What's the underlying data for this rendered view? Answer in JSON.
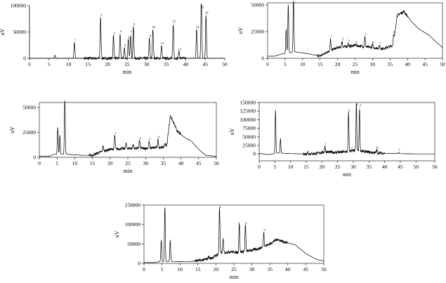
{
  "chart_data": [
    {
      "type": "line",
      "xlabel": "min",
      "ylabel": "uV",
      "xlim": [
        0,
        50
      ],
      "ylim": [
        0,
        100000
      ],
      "xticks": [
        "0",
        "5",
        "10",
        "15",
        "20",
        "25",
        "30",
        "35",
        "40",
        "45",
        "50"
      ],
      "yticks": [
        "0",
        "50000",
        "100000"
      ],
      "frame": false,
      "peaks": [
        {
          "x": 6.5,
          "y": 6000,
          "label": ""
        },
        {
          "x": 11.5,
          "y": 30000,
          "label": "1"
        },
        {
          "x": 18.2,
          "y": 78000,
          "label": "2"
        },
        {
          "x": 21.5,
          "y": 43000,
          "label": "3"
        },
        {
          "x": 23.2,
          "y": 47000,
          "label": "4"
        },
        {
          "x": 24.3,
          "y": 20000,
          "label": "5"
        },
        {
          "x": 25.3,
          "y": 35000,
          "label": "6"
        },
        {
          "x": 25.9,
          "y": 45000,
          "label": "7"
        },
        {
          "x": 26.6,
          "y": 60000,
          "label": "8"
        },
        {
          "x": 30.7,
          "y": 38000,
          "label": "9"
        },
        {
          "x": 31.6,
          "y": 55000,
          "label": "10"
        },
        {
          "x": 33.8,
          "y": 24000,
          "label": "11"
        },
        {
          "x": 36.8,
          "y": 66000,
          "label": "12"
        },
        {
          "x": 38.3,
          "y": 13000,
          "label": "13"
        },
        {
          "x": 42.8,
          "y": 55000,
          "label": "14"
        },
        {
          "x": 44.0,
          "y": 115000,
          "label": "15"
        },
        {
          "x": 45.2,
          "y": 82000,
          "label": "16"
        }
      ]
    },
    {
      "type": "line",
      "xlabel": "min",
      "ylabel": "uV",
      "xlim": [
        0,
        50
      ],
      "ylim": [
        0,
        52000
      ],
      "xticks": [
        "0",
        "5",
        "10",
        "15",
        "20",
        "25",
        "30",
        "35",
        "40",
        "45",
        "50"
      ],
      "yticks": [
        "0",
        "25000",
        "50000"
      ],
      "frame": true,
      "baseline": [
        [
          0,
          2000
        ],
        [
          2,
          2000
        ],
        [
          4,
          4000
        ],
        [
          8,
          6000
        ],
        [
          12,
          4000
        ],
        [
          15,
          2000
        ],
        [
          17,
          6000
        ],
        [
          20,
          10000
        ],
        [
          25,
          12000
        ],
        [
          30,
          10000
        ],
        [
          33,
          9000
        ],
        [
          36,
          12000
        ],
        [
          37,
          40000
        ],
        [
          39,
          44000
        ],
        [
          41,
          35000
        ],
        [
          43,
          28000
        ],
        [
          46,
          22000
        ],
        [
          48,
          16000
        ],
        [
          50,
          10000
        ]
      ],
      "peaks": [
        {
          "x": 5.3,
          "y": 27000,
          "label": ""
        },
        {
          "x": 5.9,
          "y": 50000,
          "label": ""
        },
        {
          "x": 7.4,
          "y": 58000,
          "label": ""
        },
        {
          "x": 18.0,
          "y": 18000,
          "label": "1"
        },
        {
          "x": 21.3,
          "y": 16000,
          "label": "2"
        },
        {
          "x": 23.0,
          "y": 14000,
          "label": "3"
        },
        {
          "x": 25.2,
          "y": 13000,
          "label": "4"
        },
        {
          "x": 27.8,
          "y": 20000,
          "label": "5"
        },
        {
          "x": 30.0,
          "y": 13000,
          "label": "6"
        },
        {
          "x": 32.0,
          "y": 12000,
          "label": "7"
        },
        {
          "x": 36.0,
          "y": 22000,
          "label": "8"
        }
      ]
    },
    {
      "type": "line",
      "xlabel": "min",
      "ylabel": "uV",
      "xlim": [
        0,
        50
      ],
      "ylim": [
        0,
        55000
      ],
      "xticks": [
        "0",
        "5",
        "10",
        "15",
        "20",
        "25",
        "30",
        "35",
        "40",
        "45",
        "50"
      ],
      "yticks": [
        "0",
        "25000",
        "50000"
      ],
      "frame": true,
      "baseline": [
        [
          0,
          1000
        ],
        [
          3,
          1000
        ],
        [
          4,
          3000
        ],
        [
          8,
          3000
        ],
        [
          12,
          2000
        ],
        [
          15,
          2000
        ],
        [
          17,
          5000
        ],
        [
          20,
          8000
        ],
        [
          25,
          9000
        ],
        [
          30,
          9000
        ],
        [
          34,
          10000
        ],
        [
          35,
          10000
        ],
        [
          36,
          12000
        ],
        [
          37,
          42000
        ],
        [
          39,
          26000
        ],
        [
          41,
          20000
        ],
        [
          43,
          16000
        ],
        [
          45,
          8000
        ],
        [
          47,
          2000
        ],
        [
          50,
          1000
        ]
      ],
      "peaks": [
        {
          "x": 5.2,
          "y": 30000,
          "label": ""
        },
        {
          "x": 5.8,
          "y": 22000,
          "label": ""
        },
        {
          "x": 7.2,
          "y": 60000,
          "label": ""
        },
        {
          "x": 18.0,
          "y": 12000,
          "label": ""
        },
        {
          "x": 21.3,
          "y": 22000,
          "label": "1"
        },
        {
          "x": 24.5,
          "y": 14000,
          "label": ""
        },
        {
          "x": 26.5,
          "y": 13000,
          "label": ""
        },
        {
          "x": 28.3,
          "y": 17000,
          "label": "2"
        },
        {
          "x": 31.0,
          "y": 16000,
          "label": "3"
        },
        {
          "x": 33.5,
          "y": 18000,
          "label": "4"
        },
        {
          "x": 35.5,
          "y": 14000,
          "label": ""
        },
        {
          "x": 42.2,
          "y": 18000,
          "label": ""
        }
      ]
    },
    {
      "type": "line",
      "xlabel": "min",
      "ylabel": "uV",
      "xlim": [
        0,
        56
      ],
      "ylim": [
        -20000,
        150000
      ],
      "xticks": [
        "0",
        "5",
        "10",
        "15",
        "20",
        "25",
        "30",
        "35",
        "40",
        "45",
        "50",
        "56"
      ],
      "yticks": [
        "0",
        "25000",
        "50000",
        "75000",
        "100000",
        "125000",
        "150000"
      ],
      "frame": true,
      "baseline": [
        [
          0,
          2000
        ],
        [
          3,
          -2000
        ],
        [
          6,
          3000
        ],
        [
          10,
          1000
        ],
        [
          14,
          0
        ],
        [
          18,
          1000
        ],
        [
          21,
          6000
        ],
        [
          25,
          4000
        ],
        [
          27,
          6000
        ],
        [
          29,
          8000
        ],
        [
          31,
          10000
        ],
        [
          33,
          8000
        ],
        [
          36,
          4000
        ],
        [
          40,
          2000
        ],
        [
          45,
          1000
        ],
        [
          50,
          0
        ],
        [
          56,
          0
        ]
      ],
      "peaks": [
        {
          "x": 5.2,
          "y": 130000,
          "label": ""
        },
        {
          "x": 6.8,
          "y": 45000,
          "label": ""
        },
        {
          "x": 15.5,
          "y": 6000,
          "label": ""
        },
        {
          "x": 21.0,
          "y": 22000,
          "label": "1"
        },
        {
          "x": 25.0,
          "y": 8000,
          "label": ""
        },
        {
          "x": 28.5,
          "y": 120000,
          "label": "2"
        },
        {
          "x": 29.2,
          "y": 10000,
          "label": "3"
        },
        {
          "x": 31.0,
          "y": 150000,
          "label": "4"
        },
        {
          "x": 32.0,
          "y": 135000,
          "label": "5"
        },
        {
          "x": 37.5,
          "y": 12000,
          "label": "6"
        },
        {
          "x": 44.5,
          "y": 5000,
          "label": "7"
        }
      ]
    },
    {
      "type": "line",
      "xlabel": "min",
      "ylabel": "uV",
      "xlim": [
        0,
        50
      ],
      "ylim": [
        0,
        150000
      ],
      "xticks": [
        "0",
        "5",
        "10",
        "15",
        "20",
        "25",
        "30",
        "35",
        "40",
        "45",
        "50"
      ],
      "yticks": [
        "0",
        "50000",
        "100000",
        "150000"
      ],
      "frame": true,
      "baseline": [
        [
          0,
          2000
        ],
        [
          3,
          2000
        ],
        [
          4,
          4000
        ],
        [
          8,
          5000
        ],
        [
          12,
          4000
        ],
        [
          16,
          8000
        ],
        [
          19,
          14000
        ],
        [
          21,
          26000
        ],
        [
          24,
          30000
        ],
        [
          26,
          28000
        ],
        [
          29,
          32000
        ],
        [
          32,
          38000
        ],
        [
          35,
          50000
        ],
        [
          37,
          62000
        ],
        [
          39,
          55000
        ],
        [
          42,
          48000
        ],
        [
          45,
          25000
        ],
        [
          48,
          10000
        ],
        [
          50,
          6000
        ]
      ],
      "peaks": [
        {
          "x": 4.8,
          "y": 60000,
          "label": ""
        },
        {
          "x": 5.8,
          "y": 145000,
          "label": ""
        },
        {
          "x": 7.3,
          "y": 60000,
          "label": ""
        },
        {
          "x": 18.0,
          "y": 18000,
          "label": ""
        },
        {
          "x": 21.0,
          "y": 145000,
          "label": "1"
        },
        {
          "x": 22.0,
          "y": 65000,
          "label": ""
        },
        {
          "x": 26.5,
          "y": 105000,
          "label": ""
        },
        {
          "x": 28.2,
          "y": 98000,
          "label": "2"
        },
        {
          "x": 33.3,
          "y": 80000,
          "label": "3"
        },
        {
          "x": 43.0,
          "y": 40000,
          "label": ""
        }
      ]
    }
  ]
}
